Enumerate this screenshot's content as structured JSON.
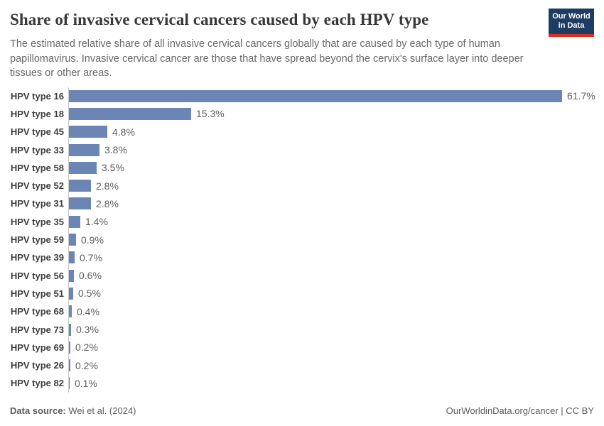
{
  "header": {
    "title": "Share of invasive cervical cancers caused by each HPV type",
    "subtitle": "The estimated relative share of all invasive cervical cancers globally that are caused by each type of human papillomavirus. Invasive cervical cancer are those that have spread beyond the cervix's surface layer into deeper tissues or other areas.",
    "logo": {
      "line1": "Our World",
      "line2": "in Data"
    }
  },
  "chart_data": {
    "type": "bar",
    "orientation": "horizontal",
    "title": "Share of invasive cervical cancers caused by each HPV type",
    "categories": [
      "HPV type 16",
      "HPV type 18",
      "HPV type 45",
      "HPV type 33",
      "HPV type 58",
      "HPV type 52",
      "HPV type 31",
      "HPV type 35",
      "HPV type 59",
      "HPV type 39",
      "HPV type 56",
      "HPV type 51",
      "HPV type 68",
      "HPV type 73",
      "HPV type 69",
      "HPV type 26",
      "HPV type 82"
    ],
    "values": [
      61.7,
      15.3,
      4.8,
      3.8,
      3.5,
      2.8,
      2.8,
      1.4,
      0.9,
      0.7,
      0.6,
      0.5,
      0.4,
      0.3,
      0.2,
      0.2,
      0.1
    ],
    "value_labels": [
      "61.7%",
      "15.3%",
      "4.8%",
      "3.8%",
      "3.5%",
      "2.8%",
      "2.8%",
      "1.4%",
      "0.9%",
      "0.7%",
      "0.6%",
      "0.5%",
      "0.4%",
      "0.3%",
      "0.2%",
      "0.2%",
      "0.1%"
    ],
    "value_suffix": "%",
    "xlabel": "",
    "ylabel": "",
    "xlim": [
      0,
      61.7
    ],
    "grid": false,
    "legend": false,
    "bar_color": "#6b86b4",
    "axis_line_color": "#c9c9c9"
  },
  "footer": {
    "datasource_label": "Data source:",
    "datasource_value": "Wei et al. (2024)",
    "attribution": "OurWorldinData.org/cancer | CC BY"
  },
  "colors": {
    "bar": "#6b86b4",
    "logo_navy": "#1d3d63",
    "logo_red": "#dc2e22",
    "title_text": "#383838",
    "subtitle_text": "#696969",
    "footer_text": "#5b5b5b"
  }
}
